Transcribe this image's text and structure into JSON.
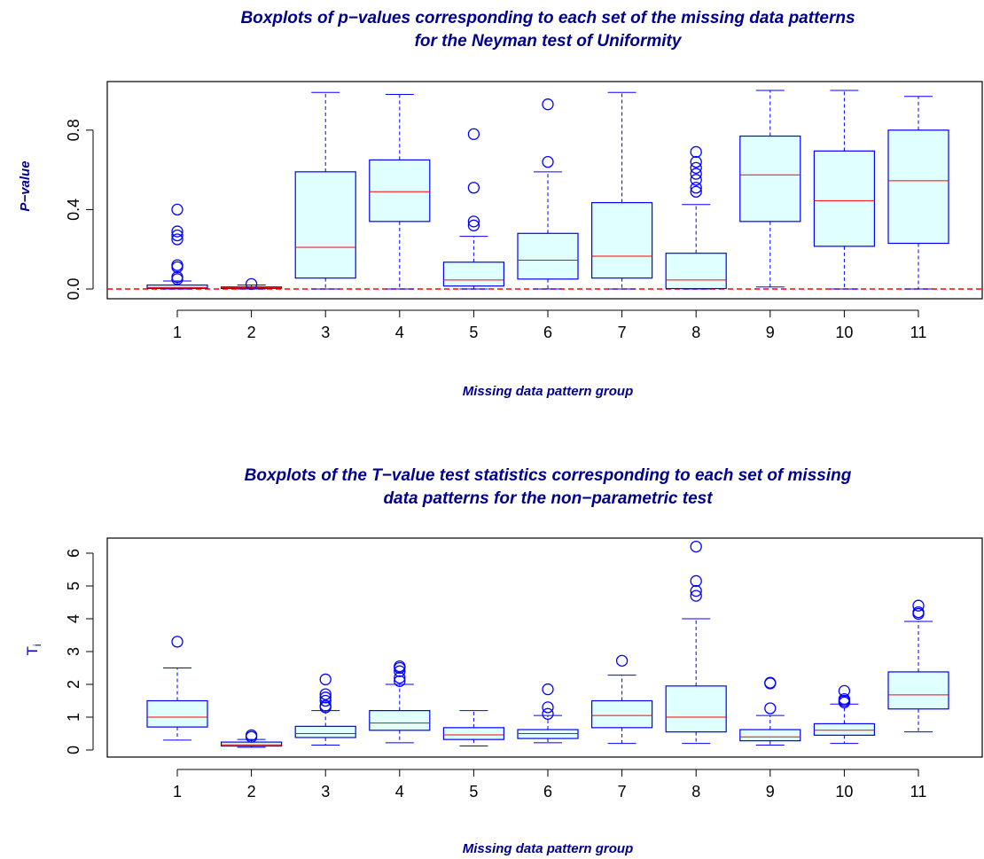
{
  "chart_data": [
    {
      "type": "boxplot",
      "title_line1": "Boxplots of p−values corresponding to each set of the missing data patterns",
      "title_line2": "for the Neyman test of Uniformity",
      "xlabel": "Missing data pattern group",
      "ylabel": "P−value",
      "ylim": [
        0,
        1
      ],
      "yticks": [
        "0.0",
        "0.4",
        "0.8"
      ],
      "ytick_values": [
        0,
        0.4,
        0.8
      ],
      "reference_line": {
        "y": 0,
        "style": "dashed",
        "color": "#FF0000"
      },
      "categories": [
        "1",
        "2",
        "3",
        "4",
        "5",
        "6",
        "7",
        "8",
        "9",
        "10",
        "11"
      ],
      "boxes": [
        {
          "min": 0.0,
          "q1": 0.003,
          "median": 0.008,
          "q3": 0.02,
          "max": 0.04,
          "outliers": [
            0.05,
            0.06,
            0.11,
            0.12,
            0.25,
            0.27,
            0.29,
            0.4
          ]
        },
        {
          "min": 0.0,
          "q1": 0.003,
          "median": 0.006,
          "q3": 0.01,
          "max": 0.02,
          "outliers": [
            0.025
          ]
        },
        {
          "min": 0.0,
          "q1": 0.055,
          "median": 0.21,
          "q3": 0.59,
          "max": 0.99,
          "outliers": []
        },
        {
          "min": 0.0,
          "q1": 0.34,
          "median": 0.49,
          "q3": 0.65,
          "max": 0.98,
          "outliers": []
        },
        {
          "min": 0.0,
          "q1": 0.015,
          "median": 0.045,
          "q3": 0.135,
          "max": 0.265,
          "outliers": [
            0.32,
            0.34,
            0.51,
            0.78
          ]
        },
        {
          "min": 0.0,
          "q1": 0.05,
          "median": 0.145,
          "q3": 0.28,
          "max": 0.59,
          "outliers": [
            0.64,
            0.93
          ]
        },
        {
          "min": 0.0,
          "q1": 0.055,
          "median": 0.165,
          "q3": 0.435,
          "max": 0.99,
          "outliers": []
        },
        {
          "min": 0.0,
          "q1": 0.002,
          "median": 0.045,
          "q3": 0.18,
          "max": 0.425,
          "outliers": [
            0.49,
            0.51,
            0.55,
            0.58,
            0.61,
            0.64,
            0.69
          ]
        },
        {
          "min": 0.01,
          "q1": 0.34,
          "median": 0.575,
          "q3": 0.77,
          "max": 1.0,
          "outliers": []
        },
        {
          "min": 0.0,
          "q1": 0.215,
          "median": 0.445,
          "q3": 0.695,
          "max": 1.0,
          "outliers": []
        },
        {
          "min": 0.0,
          "q1": 0.23,
          "median": 0.545,
          "q3": 0.8,
          "max": 0.97,
          "outliers": []
        }
      ],
      "colors": {
        "box_fill": "#E0FFFF",
        "box_border": "#0000FF",
        "median": "#FF0000",
        "title": "#00008B"
      }
    },
    {
      "type": "boxplot",
      "title_line1": "Boxplots of the T−value test statistics corresponding to each set of missing",
      "title_line2": "data patterns for the non−parametric test",
      "xlabel": "Missing data pattern group",
      "ylabel": "T",
      "ylabel_subscript": "i",
      "ylim": [
        0,
        6.2
      ],
      "yticks": [
        "0",
        "1",
        "2",
        "3",
        "4",
        "5",
        "6"
      ],
      "ytick_values": [
        0,
        1,
        2,
        3,
        4,
        5,
        6
      ],
      "categories": [
        "1",
        "2",
        "3",
        "4",
        "5",
        "6",
        "7",
        "8",
        "9",
        "10",
        "11"
      ],
      "boxes": [
        {
          "min": 0.3,
          "q1": 0.7,
          "median": 1.0,
          "q3": 1.5,
          "max": 2.5,
          "outliers": [
            3.3
          ]
        },
        {
          "min": 0.08,
          "q1": 0.12,
          "median": 0.16,
          "q3": 0.24,
          "max": 0.32,
          "outliers": [
            0.4,
            0.45
          ]
        },
        {
          "min": 0.15,
          "q1": 0.38,
          "median": 0.5,
          "q3": 0.72,
          "max": 1.2,
          "outliers": [
            1.3,
            1.35,
            1.5,
            1.6,
            1.7,
            2.15
          ]
        },
        {
          "min": 0.22,
          "q1": 0.6,
          "median": 0.82,
          "q3": 1.2,
          "max": 2.0,
          "outliers": [
            2.1,
            2.2,
            2.4,
            2.5,
            2.55
          ]
        },
        {
          "min": 0.12,
          "q1": 0.32,
          "median": 0.46,
          "q3": 0.68,
          "max": 1.2,
          "outliers": []
        },
        {
          "min": 0.22,
          "q1": 0.35,
          "median": 0.5,
          "q3": 0.62,
          "max": 1.05,
          "outliers": [
            1.1,
            1.3,
            1.85
          ]
        },
        {
          "min": 0.2,
          "q1": 0.68,
          "median": 1.05,
          "q3": 1.5,
          "max": 2.28,
          "outliers": [
            2.72
          ]
        },
        {
          "min": 0.2,
          "q1": 0.55,
          "median": 1.0,
          "q3": 1.95,
          "max": 4.0,
          "outliers": [
            4.7,
            4.85,
            5.15,
            6.2
          ]
        },
        {
          "min": 0.15,
          "q1": 0.28,
          "median": 0.4,
          "q3": 0.62,
          "max": 1.05,
          "outliers": [
            1.27,
            2.03,
            2.05
          ]
        },
        {
          "min": 0.2,
          "q1": 0.45,
          "median": 0.6,
          "q3": 0.8,
          "max": 1.4,
          "outliers": [
            1.45,
            1.5,
            1.55,
            1.8
          ]
        },
        {
          "min": 0.55,
          "q1": 1.25,
          "median": 1.68,
          "q3": 2.38,
          "max": 3.92,
          "outliers": [
            4.15,
            4.2,
            4.4
          ]
        }
      ],
      "colors": {
        "box_fill": "#E0FFFF",
        "box_border": "#0000FF",
        "median": "#FF0000",
        "title": "#00008B"
      }
    }
  ]
}
